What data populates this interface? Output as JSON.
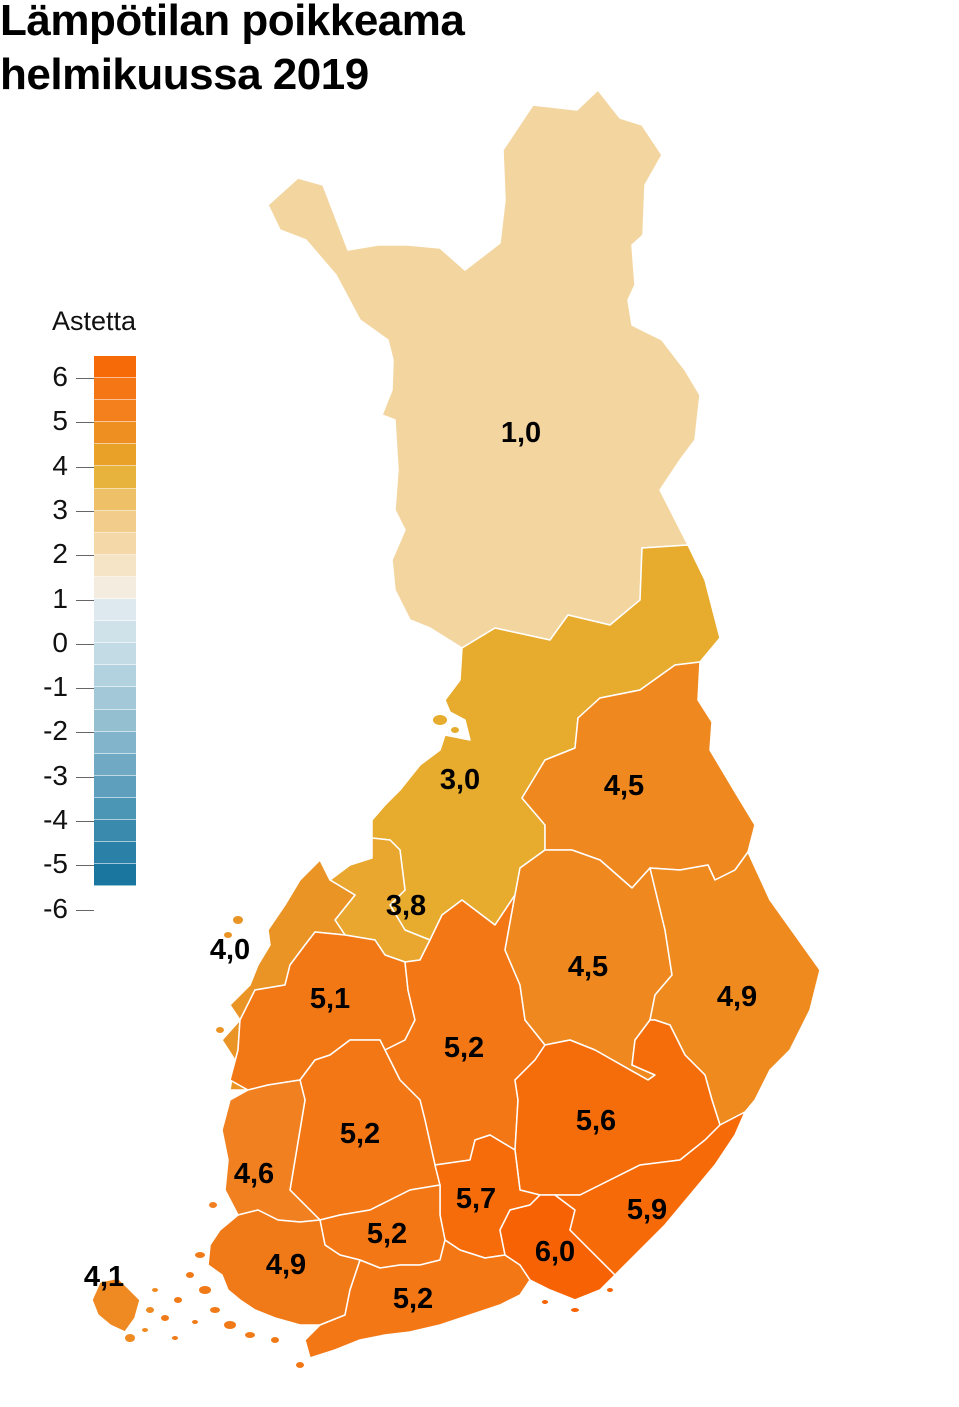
{
  "title_line1": "Lämpötilan poikkeama",
  "title_line2": "helmikuussa 2019",
  "legend": {
    "title": "Astetta",
    "ticks": [
      "6",
      "5",
      "4",
      "3",
      "2",
      "1",
      "0",
      "-1",
      "-2",
      "-3",
      "-4",
      "-5",
      "-6"
    ],
    "colors": [
      "#f76a08",
      "#f47614",
      "#f3801d",
      "#ee8f22",
      "#e9a128",
      "#e8b33d",
      "#eec168",
      "#f2cc8a",
      "#f4d8a8",
      "#f6e4c6",
      "#f5ece0",
      "#dde9ee",
      "#cfe2ea",
      "#c2dbe5",
      "#b3d2df",
      "#a3c9d8",
      "#93bfd1",
      "#82b5cb",
      "#6fa9c3",
      "#5d9fbc",
      "#4b95b5",
      "#3a8aad",
      "#2a80a6",
      "#1a759f"
    ]
  },
  "regions": [
    {
      "name": "Lappi",
      "value": "1,0",
      "color": "#f3d59f"
    },
    {
      "name": "Pohjois-Pohjanmaa",
      "value": "3,0",
      "color": "#e7ab2d"
    },
    {
      "name": "Kainuu",
      "value": "4,5",
      "color": "#ef881e"
    },
    {
      "name": "Keski-Pohjanmaa",
      "value": "3,8",
      "color": "#e9a72f"
    },
    {
      "name": "Pohjanmaa",
      "value": "4,0",
      "color": "#eb9426"
    },
    {
      "name": "Etelä-Pohjanmaa",
      "value": "5,1",
      "color": "#f27715"
    },
    {
      "name": "Keski-Suomi",
      "value": "5,2",
      "color": "#f37715"
    },
    {
      "name": "Pohjois-Savo",
      "value": "4,5",
      "color": "#ef881e"
    },
    {
      "name": "Pohjois-Karjala",
      "value": "4,9",
      "color": "#ef8a1f"
    },
    {
      "name": "Etelä-Savo",
      "value": "5,6",
      "color": "#f56d0a"
    },
    {
      "name": "Pirkanmaa",
      "value": "5,2",
      "color": "#f37715"
    },
    {
      "name": "Satakunta",
      "value": "4,6",
      "color": "#f08020"
    },
    {
      "name": "Päijät-Häme",
      "value": "5,7",
      "color": "#f66c0a"
    },
    {
      "name": "Kanta-Häme",
      "value": "5,2",
      "color": "#f37715"
    },
    {
      "name": "Varsinais-Suomi",
      "value": "4,9",
      "color": "#f17a18"
    },
    {
      "name": "Uusimaa",
      "value": "5,2",
      "color": "#f37715"
    },
    {
      "name": "Kymenlaakso",
      "value": "6,0",
      "color": "#f76304"
    },
    {
      "name": "Etelä-Karjala",
      "value": "5,9",
      "color": "#f66a08"
    },
    {
      "name": "Ahvenanmaa",
      "value": "4,1",
      "color": "#ef8a22"
    }
  ]
}
